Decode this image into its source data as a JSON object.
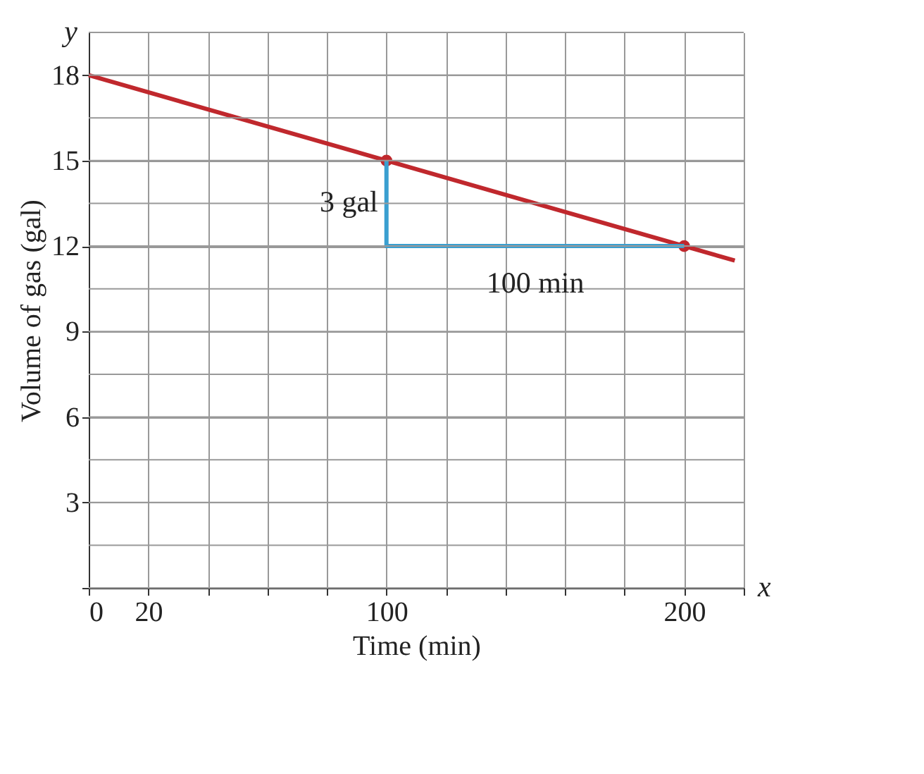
{
  "chart_data": {
    "type": "line",
    "xlabel": "Time (min)",
    "ylabel": "Volume of gas (gal)",
    "xlim": [
      0,
      220
    ],
    "ylim": [
      0,
      19.5
    ],
    "xticks": [
      0,
      {
        "value": 20,
        "label": "20"
      },
      {
        "value": 40,
        "label": null
      },
      {
        "value": 60,
        "label": null
      },
      {
        "value": 80,
        "label": null
      },
      100,
      {
        "value": 120,
        "label": null
      },
      {
        "value": 140,
        "label": null
      },
      {
        "value": 160,
        "label": null
      },
      {
        "value": 180,
        "label": null
      },
      200,
      {
        "value": 220,
        "label": null
      }
    ],
    "yticks": [
      {
        "value": 0,
        "label": null
      },
      {
        "value": 1.5,
        "label": null
      },
      3,
      {
        "value": 4.5,
        "label": null
      },
      6,
      {
        "value": 7.5,
        "label": null
      },
      9,
      {
        "value": 10.5,
        "label": null
      },
      12,
      {
        "value": 13.5,
        "label": null
      },
      15,
      {
        "value": 16.5,
        "label": null
      },
      18,
      {
        "value": 19.5,
        "label": null
      }
    ],
    "grid": true,
    "series": [
      {
        "line_style": "solid",
        "color": "#c0282d",
        "x": [
          0,
          217
        ],
        "values": [
          18,
          11.49
        ],
        "marker": "none"
      },
      {
        "type": "scatter",
        "color": "#c0282d",
        "x": [
          100,
          200
        ],
        "values": [
          15,
          12
        ],
        "marker": "circle"
      },
      {
        "line_style": "solid",
        "color": "#3a9fd0",
        "x": [
          100,
          100,
          200
        ],
        "values": [
          15,
          12,
          12
        ],
        "marker": "none"
      }
    ],
    "annotations": [
      {
        "text": "3 gal",
        "x": 100,
        "y": 13.5
      },
      {
        "text": "100 min",
        "x": 150,
        "y": 12
      },
      "x",
      "y"
    ]
  }
}
